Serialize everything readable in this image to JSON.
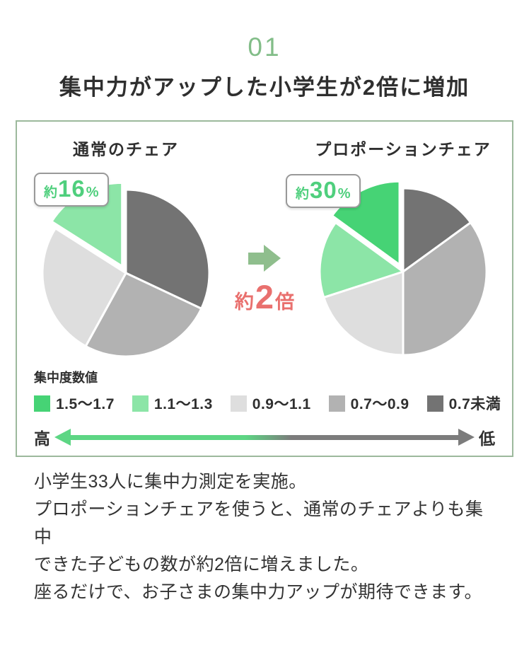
{
  "header": {
    "number": "01",
    "number_color": "#82bd88",
    "title": "集中力がアップした小学生が2倍に増加"
  },
  "chart_data": {
    "type": "pie",
    "charts": [
      {
        "title": "通常のチェア",
        "callout": {
          "prefix": "約",
          "value": "16",
          "suffix": "%"
        },
        "slices": [
          {
            "label": "0.7未満",
            "value": 32,
            "color": "#737373"
          },
          {
            "label": "0.7〜0.9",
            "value": 26,
            "color": "#b2b2b2"
          },
          {
            "label": "0.9〜1.1",
            "value": 26,
            "color": "#dedede"
          },
          {
            "label": "1.1〜1.3",
            "value": 16,
            "color": "#8ce5a7",
            "exploded": true
          }
        ]
      },
      {
        "title": "プロポーションチェア",
        "callout": {
          "prefix": "約",
          "value": "30",
          "suffix": "%"
        },
        "slices": [
          {
            "label": "0.7未満",
            "value": 15,
            "color": "#737373"
          },
          {
            "label": "0.7〜0.9",
            "value": 35,
            "color": "#b2b2b2"
          },
          {
            "label": "0.9〜1.1",
            "value": 20,
            "color": "#dedede"
          },
          {
            "label": "1.1〜1.3",
            "value": 15,
            "color": "#8ce5a7"
          },
          {
            "label": "1.5〜1.7",
            "value": 15,
            "color": "#46d375",
            "exploded": true
          }
        ]
      }
    ],
    "legend": {
      "title": "集中度数値",
      "items": [
        {
          "label": "1.5〜1.7",
          "color": "#46d375"
        },
        {
          "label": "1.1〜1.3",
          "color": "#8ce5a7"
        },
        {
          "label": "0.9〜1.1",
          "color": "#dedede"
        },
        {
          "label": "0.7〜0.9",
          "color": "#b2b2b2"
        },
        {
          "label": "0.7未満",
          "color": "#737373"
        }
      ]
    },
    "scale_bar": {
      "left_label": "高",
      "right_label": "低",
      "left_color": "#5dd684",
      "right_color": "#7c7c7c"
    }
  },
  "comparison": {
    "arrow_color": "#8fbe8d",
    "multiplier": {
      "prefix": "約",
      "value": "2",
      "suffix": "倍"
    },
    "multiplier_color": "#e9706e"
  },
  "body": {
    "lines": [
      "小学生33人に集中力測定を実施。",
      "プロポーションチェアを使うと、通常のチェアよりも集中",
      "できた子どもの数が約2倍に増えました。",
      "座るだけで、お子さまの集中力アップが期待できます。"
    ]
  }
}
